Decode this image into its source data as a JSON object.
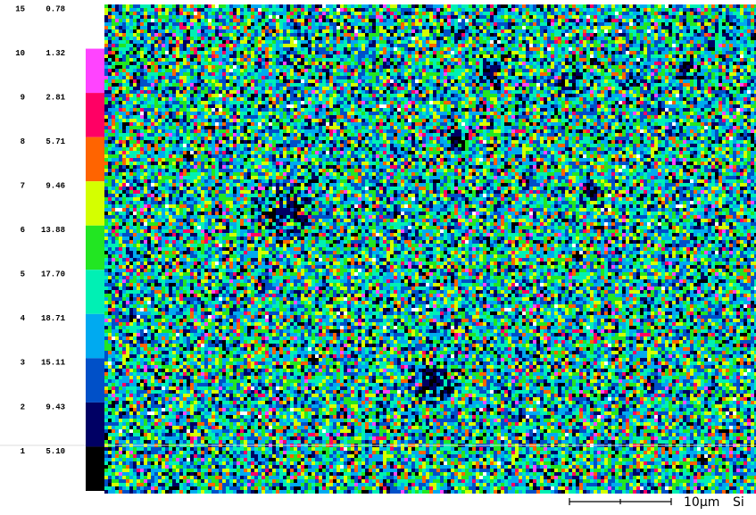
{
  "legend": {
    "levels": [
      {
        "level": 15,
        "percent": "0.78",
        "color": "#ffffff"
      },
      {
        "level": 10,
        "percent": "1.32",
        "color": "#ff44ff"
      },
      {
        "level": 9,
        "percent": "2.81",
        "color": "#ff0064"
      },
      {
        "level": 8,
        "percent": "5.71",
        "color": "#ff6400"
      },
      {
        "level": 7,
        "percent": "9.46",
        "color": "#d4ff00"
      },
      {
        "level": 6,
        "percent": "13.88",
        "color": "#22e622"
      },
      {
        "level": 5,
        "percent": "17.70",
        "color": "#00f0b4"
      },
      {
        "level": 4,
        "percent": "18.71",
        "color": "#00aaf0"
      },
      {
        "level": 3,
        "percent": "15.11",
        "color": "#0050c8"
      },
      {
        "level": 2,
        "percent": "9.43",
        "color": "#000064"
      },
      {
        "level": 1,
        "percent": "5.10",
        "color": "#000000"
      }
    ]
  },
  "scale_bar": {
    "label": "10μm",
    "element": "Si"
  }
}
